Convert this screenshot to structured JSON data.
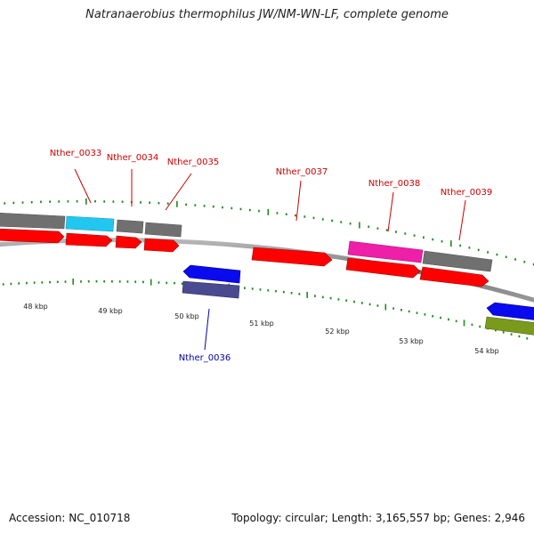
{
  "title": "Natranaerobius thermophilus JW/NM-WN-LF, complete genome",
  "footer": {
    "accession": "Accession: NC_010718",
    "summary": "Topology: circular; Length: 3,165,557 bp; Genes: 2,946"
  },
  "colors": {
    "backbone": "#8a8a8a",
    "tick": "#1f8a1f",
    "cds": "#ff0000",
    "gene_gray": "#6e6e6e",
    "gene_cyan": "#22c7f0",
    "gene_magenta": "#ee1fa8",
    "gene_blue": "#0a0aee",
    "gene_purple": "#4a4a90",
    "gene_olive": "#7a9a1c",
    "label_red": "#cc0000",
    "label_blue": "#0000aa",
    "scale_text": "#222222"
  },
  "scale_labels": [
    "48 kbp",
    "49 kbp",
    "50 kbp",
    "51 kbp",
    "52 kbp",
    "53 kbp",
    "54 kbp"
  ],
  "gene_labels": [
    {
      "text": "Nther_0033",
      "strand": "plus"
    },
    {
      "text": "Nther_0034",
      "strand": "plus"
    },
    {
      "text": "Nther_0035",
      "strand": "plus"
    },
    {
      "text": "Nther_0037",
      "strand": "plus"
    },
    {
      "text": "Nther_0038",
      "strand": "plus"
    },
    {
      "text": "Nther_0039",
      "strand": "plus"
    },
    {
      "text": "Nther_0036",
      "strand": "minus"
    }
  ]
}
